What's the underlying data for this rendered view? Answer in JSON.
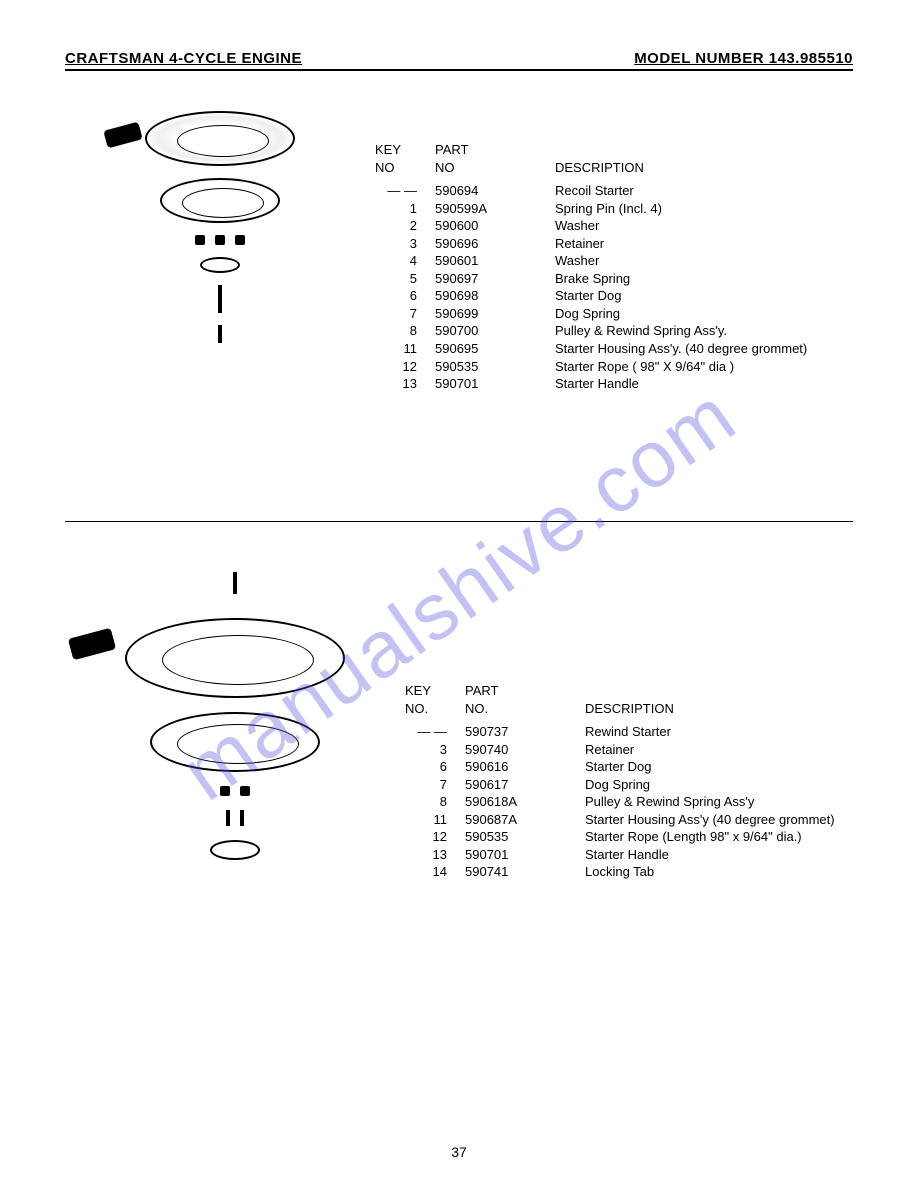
{
  "header": {
    "left": "CRAFTSMAN 4-CYCLE ENGINE",
    "right": "MODEL NUMBER 143.985510"
  },
  "table_headers": {
    "key": "KEY",
    "no": "NO",
    "no_dot": "NO.",
    "part": "PART",
    "desc": "DESCRIPTION"
  },
  "section1": {
    "rows": [
      {
        "key": "— —",
        "part": "590694",
        "desc": "Recoil Starter"
      },
      {
        "key": "1",
        "part": "590599A",
        "desc": "Spring Pin (Incl. 4)"
      },
      {
        "key": "2",
        "part": "590600",
        "desc": "Washer"
      },
      {
        "key": "3",
        "part": "590696",
        "desc": "Retainer"
      },
      {
        "key": "4",
        "part": "590601",
        "desc": "Washer"
      },
      {
        "key": "5",
        "part": "590697",
        "desc": "Brake Spring"
      },
      {
        "key": "6",
        "part": "590698",
        "desc": "Starter Dog"
      },
      {
        "key": "7",
        "part": "590699",
        "desc": "Dog Spring"
      },
      {
        "key": "8",
        "part": "590700",
        "desc": "Pulley & Rewind Spring Ass'y."
      },
      {
        "key": "11",
        "part": "590695",
        "desc": "Starter Housing Ass'y. (40 degree grommet)"
      },
      {
        "key": "12",
        "part": "590535",
        "desc": "Starter Rope ( 98\" X 9/64\" dia )"
      },
      {
        "key": "13",
        "part": "590701",
        "desc": "Starter Handle"
      }
    ]
  },
  "section2": {
    "rows": [
      {
        "key": "— —",
        "part": "590737",
        "desc": "Rewind Starter"
      },
      {
        "key": "3",
        "part": "590740",
        "desc": "Retainer"
      },
      {
        "key": "6",
        "part": "590616",
        "desc": "Starter Dog"
      },
      {
        "key": "7",
        "part": "590617",
        "desc": "Dog Spring"
      },
      {
        "key": "8",
        "part": "590618A",
        "desc": "Pulley & Rewind Spring Ass'y"
      },
      {
        "key": "11",
        "part": "590687A",
        "desc": "Starter Housing Ass'y (40 degree grommet)"
      },
      {
        "key": "12",
        "part": "590535",
        "desc": "Starter Rope (Length 98\" x 9/64\" dia.)"
      },
      {
        "key": "13",
        "part": "590701",
        "desc": "Starter Handle"
      },
      {
        "key": "14",
        "part": "590741",
        "desc": "Locking Tab"
      }
    ]
  },
  "page_number": "37",
  "watermark": "manualshive.com",
  "colors": {
    "text": "#000000",
    "background": "#ffffff",
    "watermark": "rgba(80,80,220,0.35)",
    "rule": "#000000"
  },
  "fonts": {
    "body_family": "Arial, Helvetica, sans-serif",
    "header_size_pt": 11,
    "body_size_pt": 10
  }
}
